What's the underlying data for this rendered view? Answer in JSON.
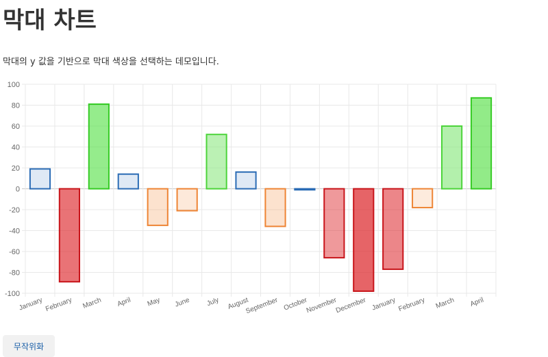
{
  "page": {
    "title": "막대 차트",
    "description": "막대의 y 값을 기반으로 막대 색상을 선택하는 데모입니다.",
    "randomize_label": "무작위화"
  },
  "chart_data": {
    "type": "bar",
    "categories": [
      "January",
      "February",
      "March",
      "April",
      "May",
      "June",
      "July",
      "August",
      "September",
      "October",
      "November",
      "December",
      "January",
      "February",
      "March",
      "April"
    ],
    "values": [
      19,
      -89,
      81,
      14,
      -35,
      -21,
      52,
      16,
      -36,
      -1,
      -66,
      -98,
      -77,
      -18,
      60,
      87
    ],
    "ylim": [
      -100,
      100
    ],
    "yticks": [
      100,
      80,
      60,
      40,
      20,
      0,
      -20,
      -40,
      -60,
      -80,
      -100
    ],
    "grid": true,
    "legend": "none",
    "color_rule": {
      "negative_strong": {
        "fill": "#dd2a2f",
        "stroke": "#c8141a"
      },
      "negative_light": {
        "fill": "#f7a566",
        "stroke": "#ee8434"
      },
      "near_zero": {
        "fill": "#4b86c6",
        "stroke": "#2b6cb5"
      },
      "positive_light": {
        "fill": "#8be87f",
        "stroke": "#4cd43a"
      },
      "positive_strong": {
        "fill": "#4fdf3f",
        "stroke": "#36cc25"
      }
    }
  }
}
